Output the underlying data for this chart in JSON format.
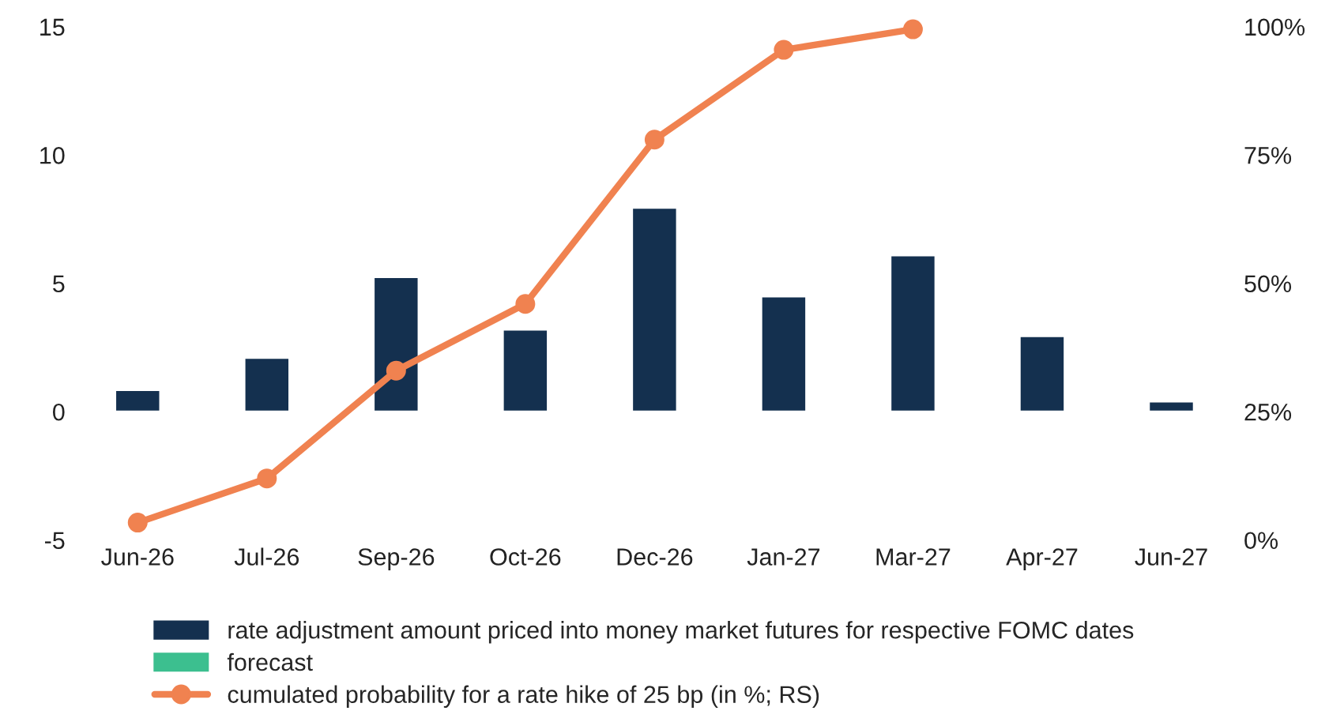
{
  "chart_data": {
    "type": "bar",
    "categories": [
      "Jun-26",
      "Jul-26",
      "Sep-26",
      "Oct-26",
      "Dec-26",
      "Jan-27",
      "Mar-27",
      "Apr-27",
      "Jun-27"
    ],
    "series": [
      {
        "name": "rate adjustment amount priced into money market futures for respective FOMC dates",
        "color": "#14304f",
        "values": [
          0.85,
          2.1,
          5.25,
          3.2,
          7.95,
          4.5,
          6.1,
          2.95,
          0.4
        ]
      },
      {
        "name": "forecast",
        "color": "#3cbf8f",
        "values": [
          null,
          null,
          null,
          null,
          null,
          null,
          null,
          null,
          null
        ]
      },
      {
        "name": "cumulated probability for a rate hike of 25 bp (in %; RS)",
        "color": "#f08250",
        "type": "line",
        "axis": "y2",
        "marker": "circle",
        "values": [
          3.4,
          12,
          33,
          46,
          78,
          95.5,
          99.5,
          null,
          null
        ]
      }
    ],
    "ylim": [
      -5,
      15
    ],
    "yticks": [
      -5,
      0,
      5,
      10,
      15
    ],
    "y2lim": [
      0,
      100
    ],
    "y2ticks": [
      {
        "value": 0,
        "label": "0%"
      },
      {
        "value": 25,
        "label": "25%"
      },
      {
        "value": 50,
        "label": "50%"
      },
      {
        "value": 75,
        "label": "75%"
      },
      {
        "value": 100,
        "label": "100%"
      }
    ],
    "grid": false,
    "legend": "bottom"
  }
}
